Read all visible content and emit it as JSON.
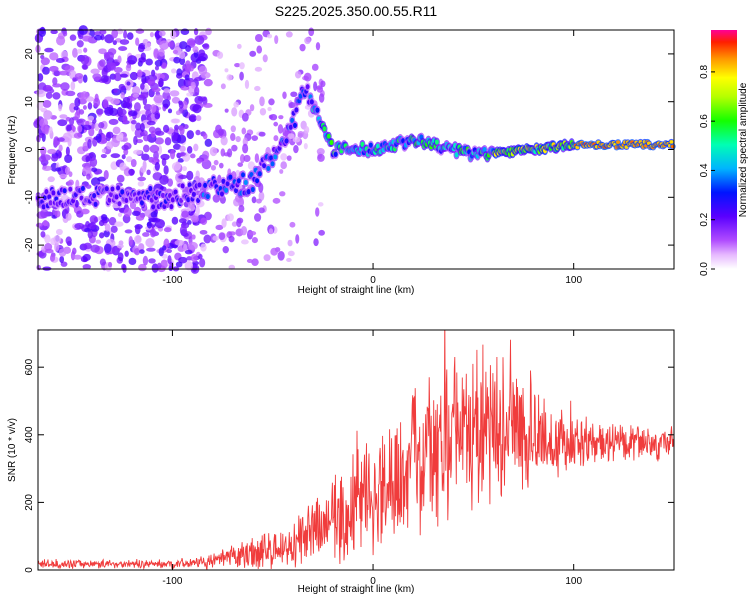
{
  "title": "S225.2025.350.00.55.R11",
  "chart_data": [
    {
      "type": "heatmap",
      "name": "spectrogram",
      "xlabel": "Height of straight line (km)",
      "ylabel": "Frequency (Hz)",
      "xlim": [
        -167,
        150
      ],
      "ylim": [
        -25,
        25
      ],
      "xticks": [
        -100,
        0,
        100
      ],
      "yticks": [
        -20,
        -10,
        0,
        10,
        20
      ],
      "colorbar": {
        "label": "Normalized spectral amplitude",
        "range": [
          0,
          0.97
        ],
        "ticks": [
          0.0,
          0.2,
          0.4,
          0.6,
          0.8
        ]
      },
      "ridge": [
        {
          "x": -100,
          "f": -10
        },
        {
          "x": -80,
          "f": -8
        },
        {
          "x": -60,
          "f": -7
        },
        {
          "x": -40,
          "f": 5
        },
        {
          "x": -35,
          "f": 14
        },
        {
          "x": -20,
          "f": 0
        },
        {
          "x": 0,
          "f": 0
        },
        {
          "x": 20,
          "f": 2
        },
        {
          "x": 50,
          "f": -1
        },
        {
          "x": 80,
          "f": 0
        },
        {
          "x": 100,
          "f": 1
        },
        {
          "x": 150,
          "f": 1
        }
      ]
    },
    {
      "type": "line",
      "name": "snr",
      "xlabel": "Height of straight line (km)",
      "ylabel": "SNR (10 * v/v)",
      "xlim": [
        -167,
        150
      ],
      "ylim": [
        0,
        710
      ],
      "xticks": [
        -100,
        0,
        100
      ],
      "yticks": [
        0,
        200,
        400,
        600
      ],
      "color": "#f03c3c",
      "envelope": [
        {
          "x": -167,
          "mean": 18,
          "amp": 15
        },
        {
          "x": -100,
          "mean": 18,
          "amp": 15
        },
        {
          "x": -80,
          "mean": 25,
          "amp": 25
        },
        {
          "x": -60,
          "mean": 50,
          "amp": 60
        },
        {
          "x": -40,
          "mean": 70,
          "amp": 80
        },
        {
          "x": -20,
          "mean": 150,
          "amp": 150
        },
        {
          "x": 0,
          "mean": 240,
          "amp": 220
        },
        {
          "x": 20,
          "mean": 320,
          "amp": 250
        },
        {
          "x": 40,
          "mean": 390,
          "amp": 280
        },
        {
          "x": 60,
          "mean": 420,
          "amp": 260
        },
        {
          "x": 80,
          "mean": 390,
          "amp": 160
        },
        {
          "x": 100,
          "mean": 375,
          "amp": 100
        },
        {
          "x": 120,
          "mean": 370,
          "amp": 70
        },
        {
          "x": 150,
          "mean": 370,
          "amp": 55
        }
      ]
    }
  ]
}
